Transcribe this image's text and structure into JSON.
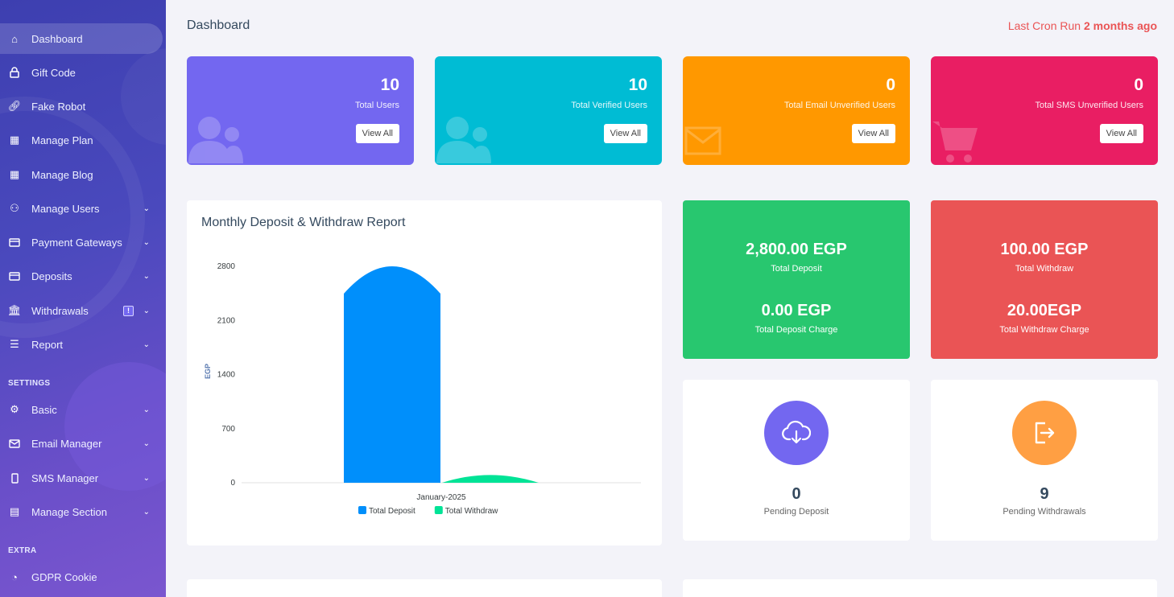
{
  "sidebar": {
    "items": [
      {
        "label": "Dashboard",
        "icon": "home-icon"
      },
      {
        "label": "Gift Code",
        "icon": "lock-icon"
      },
      {
        "label": "Fake Robot",
        "icon": "link-icon"
      },
      {
        "label": "Manage Plan",
        "icon": "building-icon"
      },
      {
        "label": "Manage Blog",
        "icon": "building-icon"
      },
      {
        "label": "Manage Users",
        "icon": "users-icon"
      },
      {
        "label": "Payment Gateways",
        "icon": "card-icon"
      },
      {
        "label": "Deposits",
        "icon": "card-icon"
      },
      {
        "label": "Withdrawals",
        "icon": "bank-icon",
        "badge": "!"
      },
      {
        "label": "Report",
        "icon": "list-icon"
      },
      {
        "label": "Basic",
        "icon": "gear-icon"
      },
      {
        "label": "Email Manager",
        "icon": "envelope-icon"
      },
      {
        "label": "SMS Manager",
        "icon": "phone-icon"
      },
      {
        "label": "Manage Section",
        "icon": "section-icon"
      },
      {
        "label": "GDPR Cookie",
        "icon": "cookie-icon"
      }
    ],
    "section_settings": "SETTINGS",
    "section_extra": "EXTRA"
  },
  "header": {
    "title": "Dashboard",
    "cron_label": "Last Cron Run",
    "cron_value": "2 months ago"
  },
  "stats": [
    {
      "value": "10",
      "label": "Total Users",
      "button": "View All",
      "color": "#7367f0"
    },
    {
      "value": "10",
      "label": "Total Verified Users",
      "button": "View All",
      "color": "#00bcd4"
    },
    {
      "value": "0",
      "label": "Total Email Unverified Users",
      "button": "View All",
      "color": "#ff9800"
    },
    {
      "value": "0",
      "label": "Total SMS Unverified Users",
      "button": "View All",
      "color": "#e91e63"
    }
  ],
  "money": {
    "deposit_value": "2,800.00 EGP",
    "deposit_label": "Total Deposit",
    "deposit_charge_value": "0.00 EGP",
    "deposit_charge_label": "Total Deposit Charge",
    "withdraw_value": "100.00 EGP",
    "withdraw_label": "Total Withdraw",
    "withdraw_charge_value": "20.00EGP",
    "withdraw_charge_label": "Total Withdraw Charge",
    "deposit_color": "#28c76f",
    "withdraw_color": "#ea5455"
  },
  "pending": {
    "deposit_value": "0",
    "deposit_label": "Pending Deposit",
    "withdraw_value": "9",
    "withdraw_label": "Pending Withdrawals",
    "deposit_color": "#7367f0",
    "withdraw_color": "#ff9f43"
  },
  "chart_data": {
    "type": "bar",
    "title": "Monthly Deposit & Withdraw Report",
    "ylabel": "EGP",
    "categories": [
      "January-2025"
    ],
    "series": [
      {
        "name": "Total Deposit",
        "values": [
          2800
        ],
        "color": "#008ffb"
      },
      {
        "name": "Total Withdraw",
        "values": [
          100
        ],
        "color": "#00e396"
      }
    ],
    "yticks": [
      "2800",
      "2100",
      "1400",
      "700",
      "0"
    ],
    "ylim": [
      0,
      2800
    ],
    "legend": "bottom"
  }
}
